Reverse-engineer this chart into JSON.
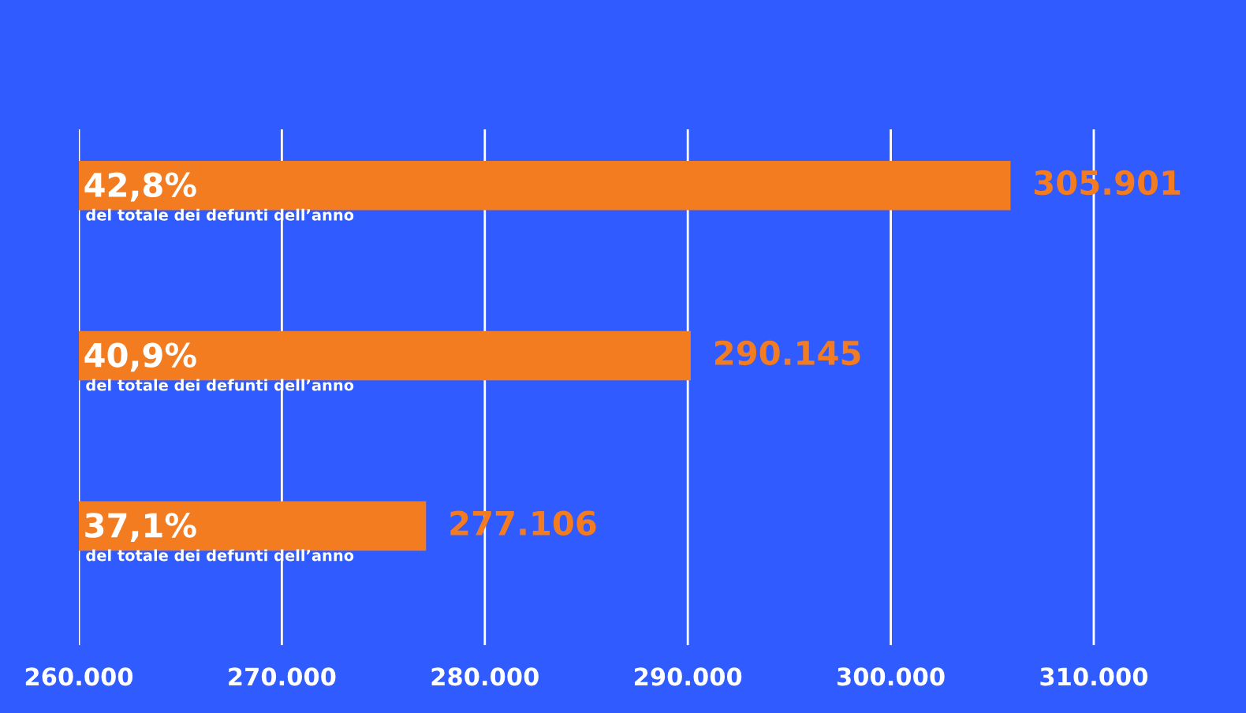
{
  "chart_data": {
    "type": "bar",
    "orientation": "horizontal",
    "categories": [
      null,
      null,
      null
    ],
    "values": [
      305901,
      290145,
      277106
    ],
    "value_labels": [
      "305.901",
      "290.145",
      "277.106"
    ],
    "color": "#f47c20",
    "xlim": [
      260000,
      317500
    ],
    "xticks": [
      {
        "value": 260000,
        "label": "260.000"
      },
      {
        "value": 270000,
        "label": "270.000"
      },
      {
        "value": 280000,
        "label": "280.000"
      },
      {
        "value": 290000,
        "label": "290.000"
      },
      {
        "value": 300000,
        "label": "300.000"
      },
      {
        "value": 310000,
        "label": "310.000"
      }
    ],
    "grid": "x",
    "annotations": [
      "42,8%",
      "del totale dei defunti dell’anno",
      "40,9%",
      "del totale dei defunti dell’anno",
      "37,1%",
      "del totale dei defunti dell’anno"
    ]
  }
}
